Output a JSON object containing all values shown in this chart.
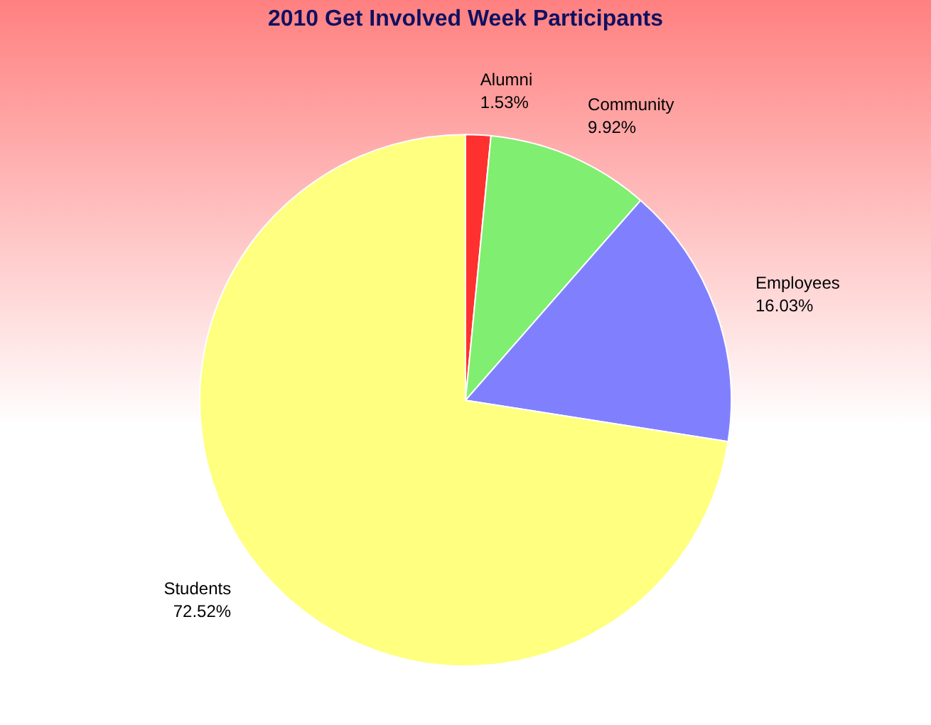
{
  "chart_data": {
    "type": "pie",
    "title": "2010 Get Involved Week Participants",
    "categories": [
      "Alumni",
      "Community",
      "Employees",
      "Students"
    ],
    "values": [
      1.53,
      9.92,
      16.03,
      72.52
    ],
    "value_labels": [
      "1.53%",
      "9.92%",
      "16.03%",
      "72.52%"
    ],
    "colors": [
      "#ff3030",
      "#80ee70",
      "#8080ff",
      "#ffff80"
    ],
    "legend": false
  }
}
